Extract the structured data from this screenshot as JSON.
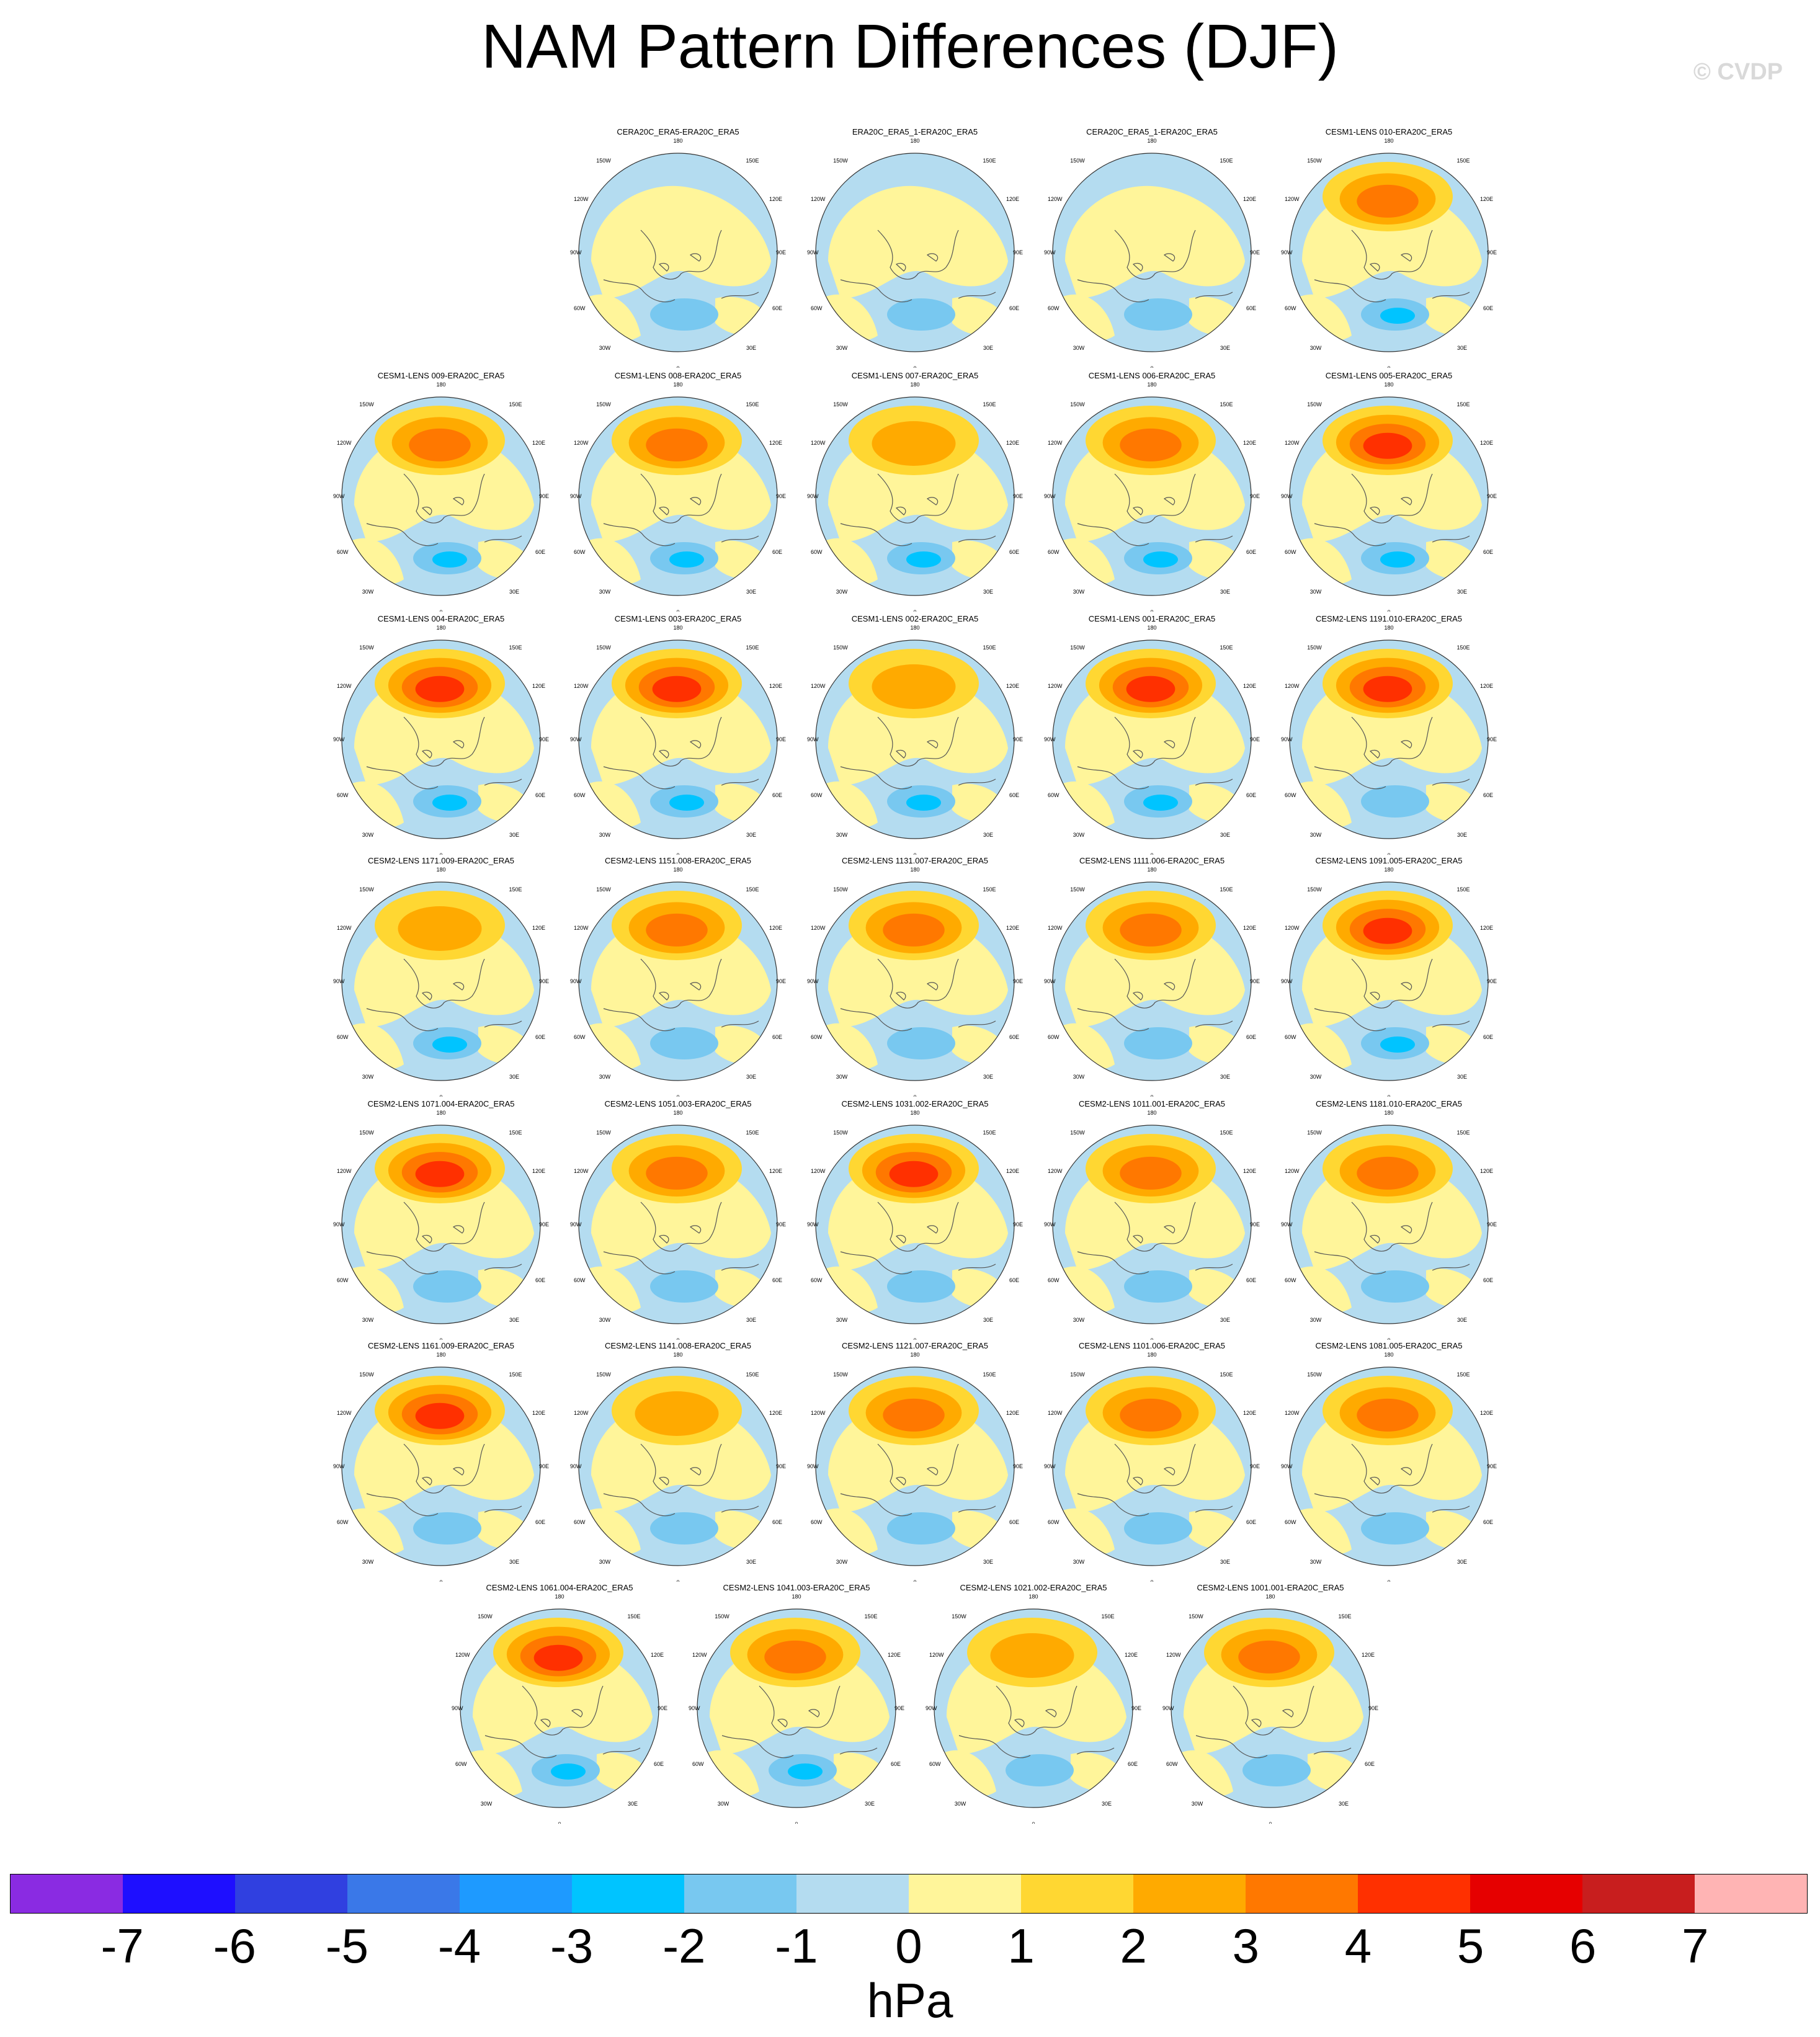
{
  "title": "NAM Pattern Differences (DJF)",
  "watermark": "© CVDP",
  "map_labels": {
    "top": "180",
    "bottom": "0",
    "left": "90W",
    "right": "90E",
    "upper_left_outer": "150W",
    "upper_left_inner": "120W",
    "upper_right_outer": "150E",
    "upper_right_inner": "120E",
    "lower_left_inner": "60W",
    "lower_left_outer": "30W",
    "lower_right_inner": "60E",
    "lower_right_outer": "30E"
  },
  "colorbar": {
    "colors": [
      "#8a2be2",
      "#1e0fff",
      "#3040e0",
      "#3a78e8",
      "#1e9aff",
      "#00c4ff",
      "#78c8f0",
      "#b4dcf0",
      "#fff59a",
      "#ffd732",
      "#ffaa00",
      "#ff7800",
      "#ff3000",
      "#e60000",
      "#c81e1e",
      "#ffb4b4"
    ],
    "labels": [
      "-7",
      "-6",
      "-5",
      "-4",
      "-3",
      "-2",
      "-1",
      "0",
      "1",
      "2",
      "3",
      "4",
      "5",
      "6",
      "7"
    ],
    "units": "hPa"
  },
  "panels": [
    {
      "title": "CERA20C_ERA5-ERA20C_ERA5",
      "intensity": 0.5,
      "dipole": 0.3
    },
    {
      "title": "ERA20C_ERA5_1-ERA20C_ERA5",
      "intensity": 0.3,
      "dipole": 0.2
    },
    {
      "title": "CERA20C_ERA5_1-ERA20C_ERA5",
      "intensity": 0.4,
      "dipole": 0.2
    },
    {
      "title": "CESM1-LENS 010-ERA20C_ERA5",
      "intensity": 3.0,
      "dipole": 1.5
    },
    {
      "title": "CESM1-LENS 009-ERA20C_ERA5",
      "intensity": 3.5,
      "dipole": 1.2
    },
    {
      "title": "CESM1-LENS 008-ERA20C_ERA5",
      "intensity": 3.2,
      "dipole": 1.6
    },
    {
      "title": "CESM1-LENS 007-ERA20C_ERA5",
      "intensity": 2.6,
      "dipole": 1.3
    },
    {
      "title": "CESM1-LENS 006-ERA20C_ERA5",
      "intensity": 3.4,
      "dipole": 1.0
    },
    {
      "title": "CESM1-LENS 005-ERA20C_ERA5",
      "intensity": 4.5,
      "dipole": 1.6
    },
    {
      "title": "CESM1-LENS 004-ERA20C_ERA5",
      "intensity": 4.6,
      "dipole": 1.8
    },
    {
      "title": "CESM1-LENS 003-ERA20C_ERA5",
      "intensity": 4.4,
      "dipole": 1.6
    },
    {
      "title": "CESM1-LENS 002-ERA20C_ERA5",
      "intensity": 2.8,
      "dipole": 1.4
    },
    {
      "title": "CESM1-LENS 001-ERA20C_ERA5",
      "intensity": 4.2,
      "dipole": 1.0
    },
    {
      "title": "CESM2-LENS 1191.010-ERA20C_ERA5",
      "intensity": 4.0,
      "dipole": 0.8
    },
    {
      "title": "CESM2-LENS 1171.009-ERA20C_ERA5",
      "intensity": 2.8,
      "dipole": 1.2
    },
    {
      "title": "CESM2-LENS 1151.008-ERA20C_ERA5",
      "intensity": 3.2,
      "dipole": 0.9
    },
    {
      "title": "CESM2-LENS 1131.007-ERA20C_ERA5",
      "intensity": 3.6,
      "dipole": 0.8
    },
    {
      "title": "CESM2-LENS 1111.006-ERA20C_ERA5",
      "intensity": 3.0,
      "dipole": 0.8
    },
    {
      "title": "CESM2-LENS 1091.005-ERA20C_ERA5",
      "intensity": 4.4,
      "dipole": 1.1
    },
    {
      "title": "CESM2-LENS 1071.004-ERA20C_ERA5",
      "intensity": 4.8,
      "dipole": 0.9
    },
    {
      "title": "CESM2-LENS 1051.003-ERA20C_ERA5",
      "intensity": 3.2,
      "dipole": 0.7
    },
    {
      "title": "CESM2-LENS 1031.002-ERA20C_ERA5",
      "intensity": 4.6,
      "dipole": 0.6
    },
    {
      "title": "CESM2-LENS 1011.001-ERA20C_ERA5",
      "intensity": 3.0,
      "dipole": 0.9
    },
    {
      "title": "CESM2-LENS 1181.010-ERA20C_ERA5",
      "intensity": 3.6,
      "dipole": 0.8
    },
    {
      "title": "CESM2-LENS 1161.009-ERA20C_ERA5",
      "intensity": 4.9,
      "dipole": 0.8
    },
    {
      "title": "CESM2-LENS 1141.008-ERA20C_ERA5",
      "intensity": 2.6,
      "dipole": 0.7
    },
    {
      "title": "CESM2-LENS 1121.007-ERA20C_ERA5",
      "intensity": 3.6,
      "dipole": 0.9
    },
    {
      "title": "CESM2-LENS 1101.006-ERA20C_ERA5",
      "intensity": 3.0,
      "dipole": 0.8
    },
    {
      "title": "CESM2-LENS 1081.005-ERA20C_ERA5",
      "intensity": 3.8,
      "dipole": 0.6
    },
    {
      "title": "CESM2-LENS 1061.004-ERA20C_ERA5",
      "intensity": 4.2,
      "dipole": 1.8
    },
    {
      "title": "CESM2-LENS 1041.003-ERA20C_ERA5",
      "intensity": 3.4,
      "dipole": 1.0
    },
    {
      "title": "CESM2-LENS 1021.002-ERA20C_ERA5",
      "intensity": 2.6,
      "dipole": 0.9
    },
    {
      "title": "CESM2-LENS 1001.001-ERA20C_ERA5",
      "intensity": 3.2,
      "dipole": 0.6
    }
  ]
}
